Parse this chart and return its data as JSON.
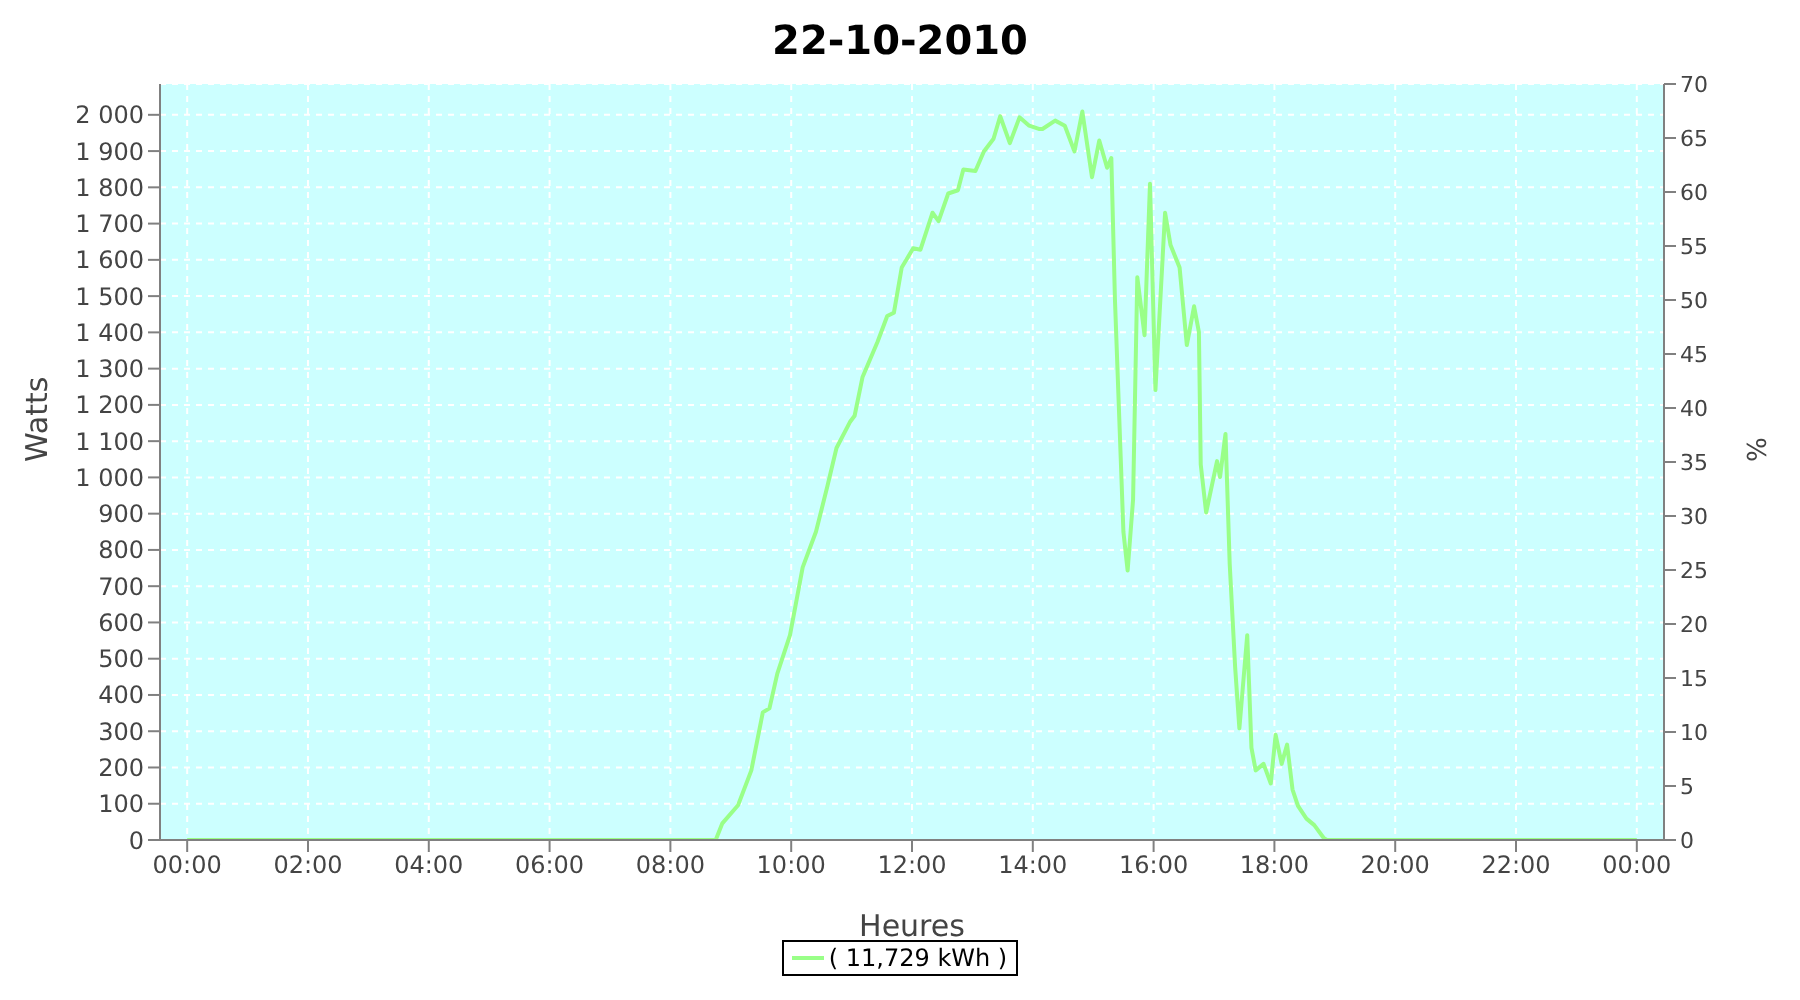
{
  "chart_data": {
    "type": "line",
    "title": "22-10-2010",
    "xlabel": "Heures",
    "ylabel": "Watts",
    "y2label": "%",
    "xlim": [
      -0.45,
      24.45
    ],
    "xticks": [
      {
        "value": 0,
        "label": "00:00"
      },
      {
        "value": 2,
        "label": "02:00"
      },
      {
        "value": 4,
        "label": "04:00"
      },
      {
        "value": 6,
        "label": "06:00"
      },
      {
        "value": 8,
        "label": "08:00"
      },
      {
        "value": 10,
        "label": "10:00"
      },
      {
        "value": 12,
        "label": "12:00"
      },
      {
        "value": 14,
        "label": "14:00"
      },
      {
        "value": 16,
        "label": "16:00"
      },
      {
        "value": 18,
        "label": "18:00"
      },
      {
        "value": 20,
        "label": "20:00"
      },
      {
        "value": 22,
        "label": "22:00"
      },
      {
        "value": 24,
        "label": "00:00"
      }
    ],
    "ylim": [
      0,
      2085
    ],
    "yticks": [
      0,
      100,
      200,
      300,
      400,
      500,
      600,
      700,
      800,
      900,
      {
        "value": 1000,
        "label": "1 000"
      },
      {
        "value": 1100,
        "label": "1 100"
      },
      {
        "value": 1200,
        "label": "1 200"
      },
      {
        "value": 1300,
        "label": "1 300"
      },
      {
        "value": 1400,
        "label": "1 400"
      },
      {
        "value": 1500,
        "label": "1 500"
      },
      {
        "value": 1600,
        "label": "1 600"
      },
      {
        "value": 1700,
        "label": "1 700"
      },
      {
        "value": 1800,
        "label": "1 800"
      },
      {
        "value": 1900,
        "label": "1 900"
      },
      {
        "value": 2000,
        "label": "2 000"
      }
    ],
    "y2lim": [
      0,
      70
    ],
    "y2ticks": [
      0,
      5,
      10,
      15,
      20,
      25,
      30,
      35,
      40,
      45,
      50,
      55,
      60,
      65,
      70
    ],
    "grid": true,
    "legend": "bottom",
    "marker": "none",
    "series": [
      {
        "name": "( 11,729 kWh )",
        "color": "#99ff88",
        "x": [
          0,
          8.75,
          8.86,
          9.12,
          9.34,
          9.53,
          9.64,
          9.77,
          9.98,
          10.19,
          10.41,
          10.6,
          10.75,
          10.97,
          11.05,
          11.18,
          11.43,
          11.59,
          11.7,
          11.83,
          12.02,
          12.14,
          12.34,
          12.44,
          12.6,
          12.76,
          12.85,
          13.05,
          13.19,
          13.35,
          13.46,
          13.62,
          13.78,
          13.94,
          14.1,
          14.16,
          14.37,
          14.53,
          14.69,
          14.82,
          14.98,
          15.1,
          15.23,
          15.3,
          15.36,
          15.5,
          15.57,
          15.66,
          15.73,
          15.85,
          15.94,
          16.03,
          16.19,
          16.28,
          16.43,
          16.55,
          16.67,
          16.75,
          16.78,
          16.87,
          17.05,
          17.1,
          17.19,
          17.26,
          17.35,
          17.42,
          17.55,
          17.62,
          17.69,
          17.82,
          17.94,
          18.02,
          18.12,
          18.21,
          18.3,
          18.39,
          18.53,
          18.66,
          18.82,
          18.87,
          24
        ],
        "values": [
          0,
          0,
          46,
          96,
          192,
          352,
          363,
          459,
          565,
          752,
          850,
          976,
          1081,
          1152,
          1170,
          1276,
          1374,
          1445,
          1454,
          1579,
          1632,
          1628,
          1730,
          1707,
          1783,
          1792,
          1849,
          1845,
          1899,
          1934,
          1996,
          1922,
          1993,
          1970,
          1961,
          1961,
          1984,
          1970,
          1899,
          2009,
          1828,
          1929,
          1854,
          1881,
          1490,
          850,
          743,
          939,
          1552,
          1392,
          1810,
          1241,
          1730,
          1641,
          1579,
          1365,
          1472,
          1401,
          1036,
          903,
          1045,
          1001,
          1120,
          761,
          476,
          308,
          565,
          254,
          192,
          210,
          156,
          290,
          210,
          263,
          139,
          94,
          59,
          41,
          5,
          0,
          0
        ]
      }
    ]
  }
}
